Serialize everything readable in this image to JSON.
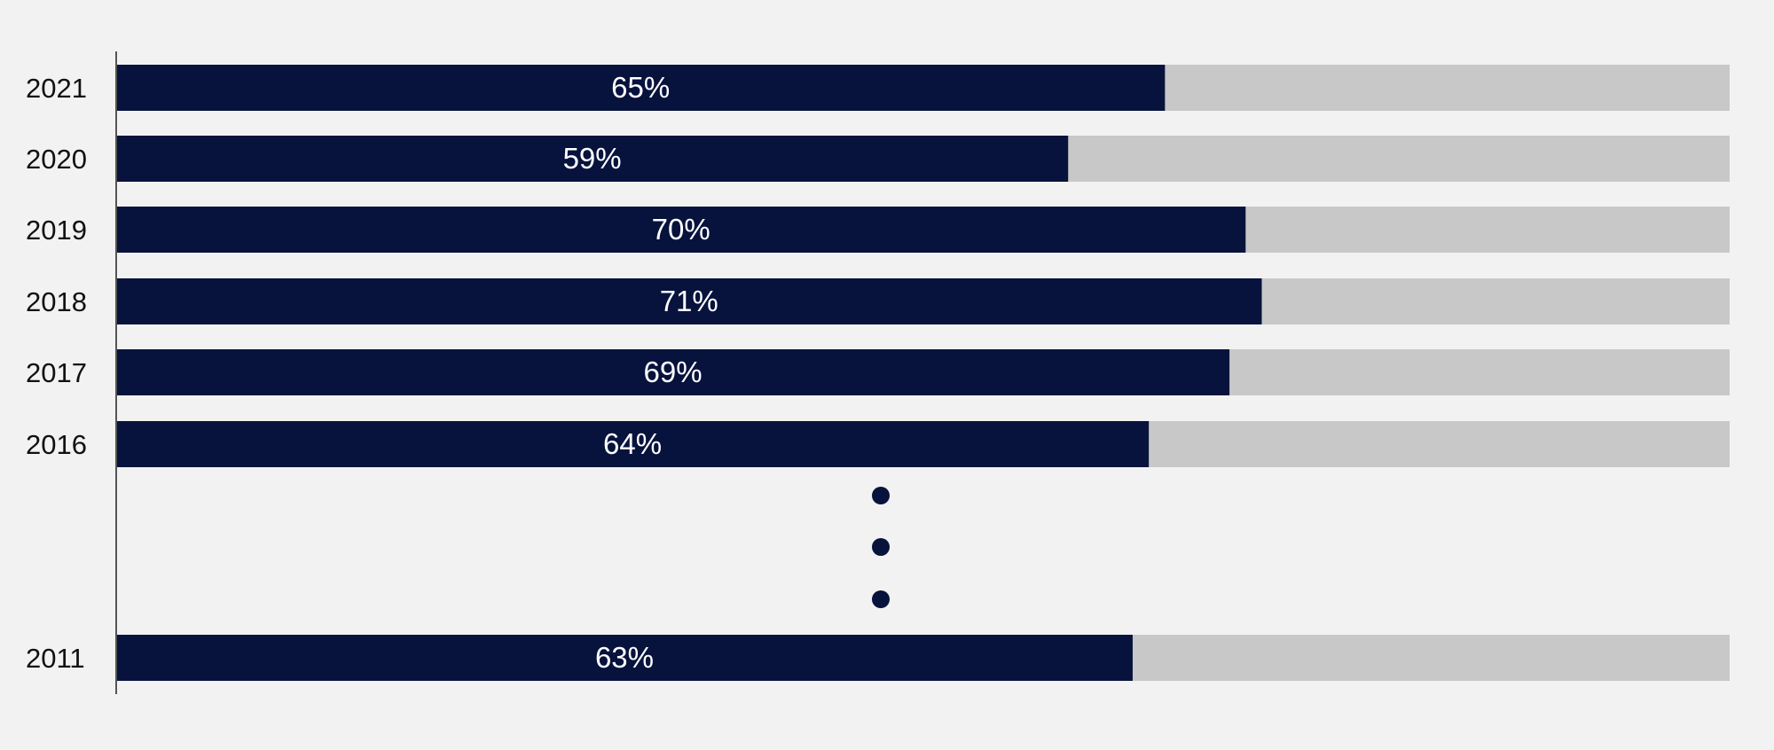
{
  "chart_data": {
    "type": "bar",
    "orientation": "horizontal",
    "stacked_to_100": true,
    "categories": [
      "2021",
      "2020",
      "2019",
      "2018",
      "2017",
      "2016",
      "2011"
    ],
    "values": [
      65,
      59,
      70,
      71,
      69,
      64,
      63
    ],
    "value_labels": [
      "65%",
      "59%",
      "70%",
      "71%",
      "69%",
      "64%",
      "63%"
    ],
    "xlim": [
      0,
      100
    ],
    "gap_after": "2016",
    "gap_marker": "vertical ellipsis",
    "grid": false,
    "legend": "none"
  },
  "colors": {
    "background": "#f2f2f2",
    "bar": "#07133d",
    "remainder": "#c8c8c8",
    "axis": "#555555",
    "year_text": "#111111",
    "value_text": "#ffffff"
  }
}
